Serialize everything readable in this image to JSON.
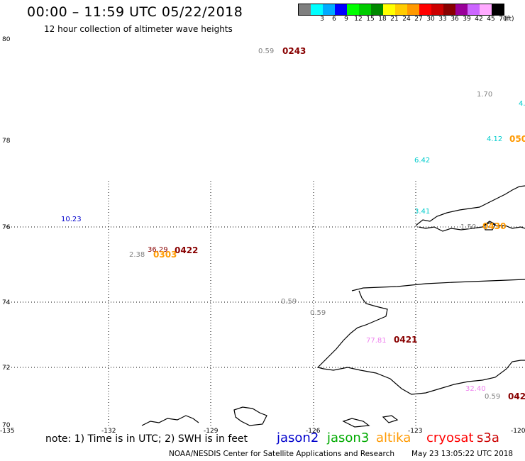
{
  "header": {
    "title": "00:00 – 11:59 UTC 05/22/2018",
    "subtitle": "12 hour collection of altimeter wave heights"
  },
  "legend": {
    "unit": "(ft)",
    "swatches": [
      {
        "label": "",
        "color": "#7f7f7f"
      },
      {
        "label": "3",
        "color": "#00ffff"
      },
      {
        "label": "6",
        "color": "#00aaff"
      },
      {
        "label": "9",
        "color": "#0000ff"
      },
      {
        "label": "12",
        "color": "#00ff00"
      },
      {
        "label": "15",
        "color": "#00cc00"
      },
      {
        "label": "18",
        "color": "#008800"
      },
      {
        "label": "21",
        "color": "#ffff00"
      },
      {
        "label": "24",
        "color": "#ffcc00"
      },
      {
        "label": "27",
        "color": "#ff9900"
      },
      {
        "label": "30",
        "color": "#ff0000"
      },
      {
        "label": "33",
        "color": "#cc0000"
      },
      {
        "label": "36",
        "color": "#880000"
      },
      {
        "label": "39",
        "color": "#990099"
      },
      {
        "label": "42",
        "color": "#cc66ff"
      },
      {
        "label": "45",
        "color": "#ffaaff"
      },
      {
        "label": "70",
        "color": "#000000"
      }
    ]
  },
  "axes": {
    "lat_labels": [
      "80",
      "78",
      "76",
      "74",
      "72",
      "70"
    ],
    "lon_labels": [
      "-135",
      "-132",
      "-129",
      "-126",
      "-123",
      "-120"
    ]
  },
  "observations": [
    {
      "id": "obs-1",
      "text": "0.59",
      "color": "#808080"
    },
    {
      "id": "obs-2",
      "text": "0243",
      "color": "#880000",
      "kind": "time"
    },
    {
      "id": "obs-3",
      "text": "1.70",
      "color": "#808080"
    },
    {
      "id": "obs-4",
      "text": "4.",
      "color": "#00cccc"
    },
    {
      "id": "obs-5",
      "text": "4.12",
      "color": "#00cccc"
    },
    {
      "id": "obs-6",
      "text": "050",
      "color": "#ff9900",
      "kind": "time"
    },
    {
      "id": "obs-7",
      "text": "6.42",
      "color": "#00cccc"
    },
    {
      "id": "obs-8",
      "text": "10.23",
      "color": "#0000cc"
    },
    {
      "id": "obs-9",
      "text": "3.41",
      "color": "#00cccc"
    },
    {
      "id": "obs-10",
      "text": "1.50",
      "color": "#808080"
    },
    {
      "id": "obs-11",
      "text": "0430",
      "color": "#ff9900",
      "kind": "time"
    },
    {
      "id": "obs-12",
      "text": "2.38",
      "color": "#808080"
    },
    {
      "id": "obs-13",
      "text": "36.29",
      "color": "#880000"
    },
    {
      "id": "obs-14",
      "text": "0422",
      "color": "#880000",
      "kind": "time"
    },
    {
      "id": "obs-15",
      "text": "0303",
      "color": "#ff9900",
      "kind": "time"
    },
    {
      "id": "obs-16",
      "text": "0.59",
      "color": "#808080"
    },
    {
      "id": "obs-17",
      "text": "0.59",
      "color": "#808080"
    },
    {
      "id": "obs-18",
      "text": "77.81",
      "color": "#ee82ee"
    },
    {
      "id": "obs-19",
      "text": "0421",
      "color": "#880000",
      "kind": "time"
    },
    {
      "id": "obs-20",
      "text": "32.40",
      "color": "#ee82ee"
    },
    {
      "id": "obs-21",
      "text": "0.59",
      "color": "#808080"
    },
    {
      "id": "obs-22",
      "text": "042",
      "color": "#880000",
      "kind": "time"
    }
  ],
  "footer": {
    "note": "note: 1) Time is in UTC; 2) SWH is in feet",
    "satellites": [
      {
        "name": "jason2",
        "color": "#0000cc"
      },
      {
        "name": "jason3",
        "color": "#00aa00"
      },
      {
        "name": "altika",
        "color": "#ff9900"
      },
      {
        "name": "cryosat",
        "color": "#ff0000"
      },
      {
        "name": "s3a",
        "color": "#cc0000"
      }
    ],
    "credit": "NOAA/NESDIS Center for Satellite Applications and Research",
    "timestamp": "May 23 13:05:22 UTC 2018"
  }
}
